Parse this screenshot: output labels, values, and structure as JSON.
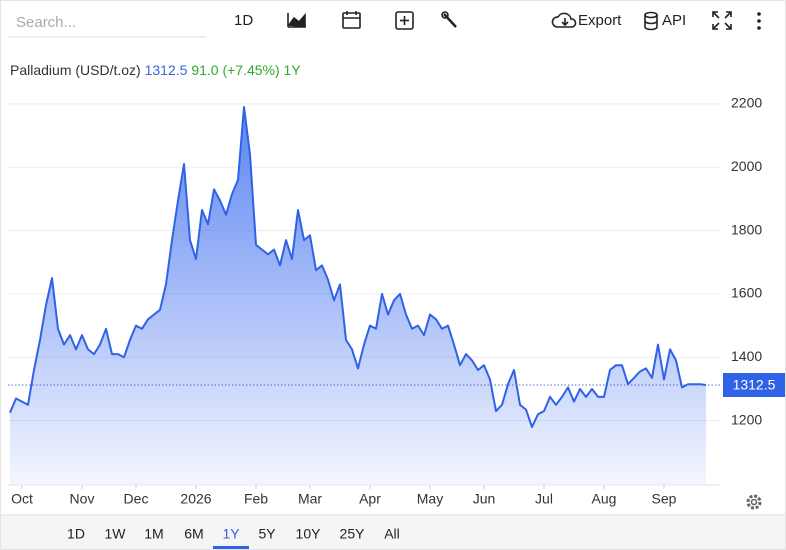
{
  "ui": {
    "search_placeholder": "Search...",
    "toolbar_period": "1D",
    "export": "Export",
    "api": "API",
    "ranges": [
      "1D",
      "1W",
      "1M",
      "6M",
      "1Y",
      "5Y",
      "10Y",
      "25Y",
      "All"
    ],
    "active_range": 4
  },
  "chart_data": {
    "type": "area",
    "title": "Palladium (USD/t.oz)",
    "price": 1312.5,
    "change": "91.0 (+7.45%)",
    "period": "1Y",
    "color": "#2f62e6",
    "values": [
      1225,
      1270,
      1260,
      1250,
      1360,
      1455,
      1565,
      1650,
      1490,
      1440,
      1470,
      1425,
      1470,
      1425,
      1410,
      1440,
      1490,
      1410,
      1410,
      1400,
      1455,
      1500,
      1490,
      1520,
      1535,
      1550,
      1630,
      1770,
      1895,
      2010,
      1770,
      1710,
      1865,
      1820,
      1930,
      1895,
      1850,
      1915,
      1960,
      2190,
      2040,
      1755,
      1740,
      1725,
      1740,
      1690,
      1770,
      1710,
      1865,
      1770,
      1785,
      1675,
      1690,
      1645,
      1580,
      1630,
      1455,
      1425,
      1365,
      1440,
      1500,
      1490,
      1600,
      1535,
      1580,
      1600,
      1535,
      1490,
      1500,
      1470,
      1535,
      1520,
      1490,
      1500,
      1440,
      1375,
      1410,
      1390,
      1360,
      1375,
      1330,
      1230,
      1250,
      1315,
      1360,
      1250,
      1235,
      1180,
      1220,
      1230,
      1275,
      1250,
      1275,
      1305,
      1260,
      1300,
      1275,
      1300,
      1275,
      1275,
      1360,
      1375,
      1375,
      1315,
      1335,
      1355,
      1365,
      1335,
      1440,
      1330,
      1425,
      1390,
      1305,
      1315,
      1315,
      1315,
      1312.5
    ],
    "xlim": [
      0,
      116
    ],
    "xticks": [
      {
        "value": 2,
        "label": "Oct"
      },
      {
        "value": 12,
        "label": "Nov"
      },
      {
        "value": 21,
        "label": "Dec"
      },
      {
        "value": 31,
        "label": "2026"
      },
      {
        "value": 41,
        "label": "Feb"
      },
      {
        "value": 50,
        "label": "Mar"
      },
      {
        "value": 60,
        "label": "Apr"
      },
      {
        "value": 70,
        "label": "May"
      },
      {
        "value": 79,
        "label": "Jun"
      },
      {
        "value": 89,
        "label": "Jul"
      },
      {
        "value": 99,
        "label": "Aug"
      },
      {
        "value": 109,
        "label": "Sep"
      }
    ],
    "ylim": [
      1000,
      2250
    ],
    "yticks": [
      1200,
      1400,
      1600,
      1800,
      2000,
      2200
    ],
    "grid": true
  }
}
